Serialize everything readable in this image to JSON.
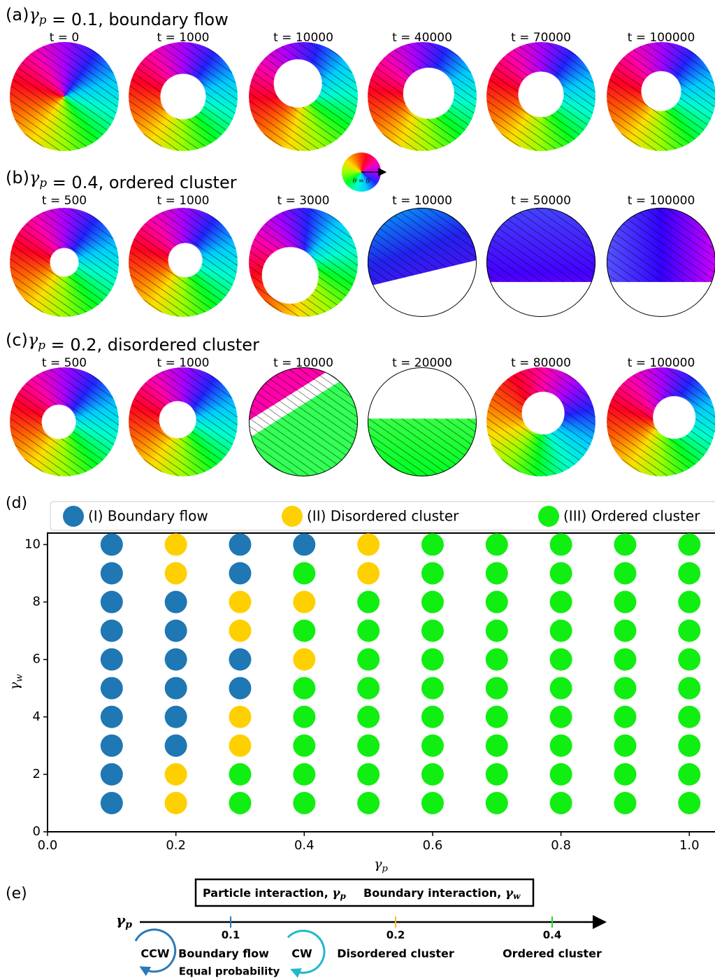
{
  "panels": [
    {
      "label": "(a)",
      "symbol": "γ",
      "subscript": "p",
      "text": " = 0.1, boundary flow",
      "times": [
        "t = 0",
        "t = 1000",
        "t = 10000",
        "t = 40000",
        "t = 70000",
        "t = 100000"
      ]
    },
    {
      "label": "(b)",
      "symbol": "γ",
      "subscript": "p",
      "text": " = 0.4, ordered cluster",
      "times": [
        "t = 500",
        "t = 1000",
        "t = 3000",
        "t = 10000",
        "t = 50000",
        "t = 100000"
      ]
    },
    {
      "label": "(c)",
      "symbol": "γ",
      "subscript": "p",
      "text": " = 0.2, disordered cluster",
      "times": [
        "t = 500",
        "t = 1000",
        "t = 10000",
        "t = 20000",
        "t = 80000",
        "t = 100000"
      ]
    }
  ],
  "colorwheel_label": "θ = 0",
  "chart_data": {
    "type": "scatter",
    "panel_label": "(d)",
    "x_label": {
      "symbol": "γ",
      "subscript": "p"
    },
    "y_label": {
      "symbol": "γ",
      "subscript": "w"
    },
    "xlim": [
      0,
      1.04
    ],
    "ylim": [
      0,
      10.4
    ],
    "xticks": [
      {
        "value": 0,
        "label": "0.0"
      },
      0.2,
      0.4,
      0.6,
      0.8,
      {
        "value": 1,
        "label": "1.0"
      }
    ],
    "yticks": [
      0,
      2,
      4,
      6,
      8,
      10
    ],
    "legend": "top",
    "series": [
      {
        "name": "(I) Boundary flow",
        "color": "#1f77b4",
        "x": [
          0.1,
          0.1,
          0.1,
          0.1,
          0.1,
          0.1,
          0.1,
          0.1,
          0.1,
          0.1,
          0.2,
          0.2,
          0.2,
          0.2,
          0.2,
          0.2,
          0.3,
          0.3,
          0.3,
          0.3,
          0.4
        ],
        "y": [
          1,
          2,
          3,
          4,
          5,
          6,
          7,
          8,
          9,
          10,
          3,
          4,
          5,
          6,
          7,
          8,
          10,
          9,
          6,
          5,
          10
        ]
      },
      {
        "name": "(II) Disordered cluster",
        "color": "#ffd000",
        "x": [
          0.2,
          0.2,
          0.2,
          0.2,
          0.3,
          0.3,
          0.3,
          0.3,
          0.4,
          0.4,
          0.5,
          0.5
        ],
        "y": [
          10,
          9,
          2,
          1,
          8,
          7,
          4,
          3,
          8,
          6,
          10,
          9
        ]
      },
      {
        "name": "(III) Ordered cluster",
        "color": "#11ee11",
        "x": [
          0.3,
          0.3,
          0.4,
          0.4,
          0.4,
          0.4,
          0.4,
          0.4,
          0.4,
          0.5,
          0.5,
          0.5,
          0.5,
          0.5,
          0.5,
          0.5,
          0.5,
          0.6,
          0.6,
          0.6,
          0.6,
          0.6,
          0.6,
          0.6,
          0.6,
          0.6,
          0.6,
          0.7,
          0.7,
          0.7,
          0.7,
          0.7,
          0.7,
          0.7,
          0.7,
          0.7,
          0.7,
          0.8,
          0.8,
          0.8,
          0.8,
          0.8,
          0.8,
          0.8,
          0.8,
          0.8,
          0.8,
          0.9,
          0.9,
          0.9,
          0.9,
          0.9,
          0.9,
          0.9,
          0.9,
          0.9,
          0.9,
          1,
          1,
          1,
          1,
          1,
          1,
          1,
          1,
          1,
          1
        ],
        "y": [
          2,
          1,
          9,
          7,
          5,
          4,
          3,
          2,
          1,
          8,
          7,
          6,
          5,
          4,
          3,
          2,
          1,
          1,
          2,
          3,
          4,
          5,
          6,
          7,
          8,
          9,
          10,
          1,
          2,
          3,
          4,
          5,
          6,
          7,
          8,
          9,
          10,
          1,
          2,
          3,
          4,
          5,
          6,
          7,
          8,
          9,
          10,
          1,
          2,
          3,
          4,
          5,
          6,
          7,
          8,
          9,
          10,
          1,
          2,
          3,
          4,
          5,
          6,
          7,
          8,
          9,
          10
        ]
      }
    ]
  },
  "panel_e": {
    "label": "(e)",
    "box": [
      {
        "text": "Particle interaction, ",
        "symbol": "γ",
        "subscript": "p"
      },
      {
        "text": "Boundary interaction, ",
        "symbol": "γ",
        "subscript": "w"
      }
    ],
    "axis": {
      "symbol": "γ",
      "subscript": "p"
    },
    "ticks": [
      {
        "label": "0.1",
        "name": "Boundary flow"
      },
      {
        "label": "0.2",
        "name": "Disordered cluster"
      },
      {
        "label": "0.4",
        "name": "Ordered cluster"
      }
    ],
    "ccw": "CCW",
    "cw": "CW",
    "note": "Equal probability"
  }
}
